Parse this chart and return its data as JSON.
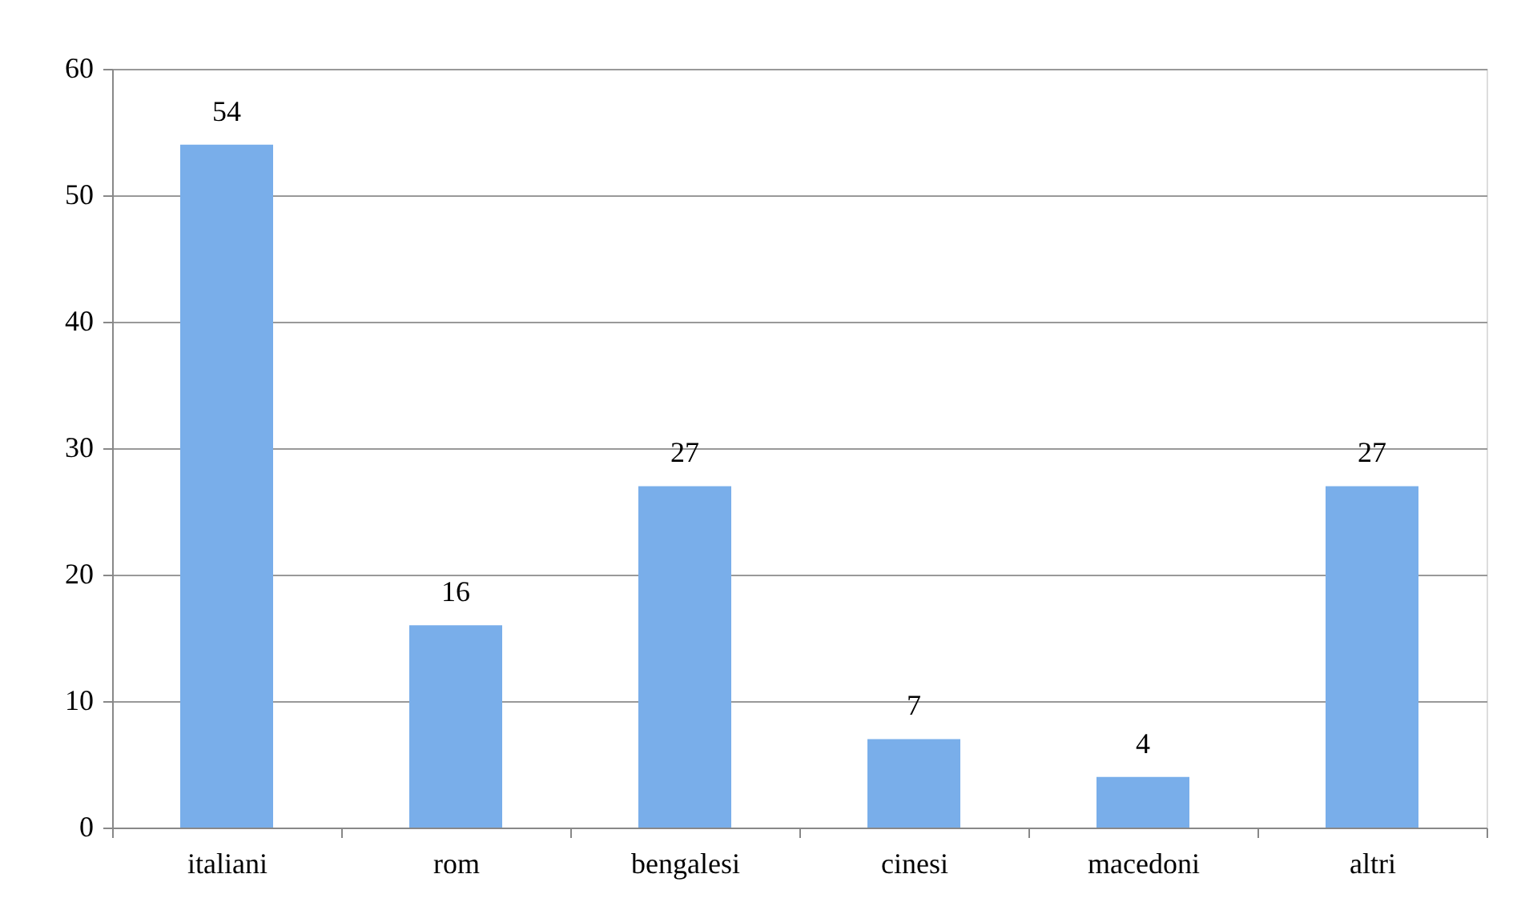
{
  "chart_data": {
    "type": "bar",
    "categories": [
      "italiani",
      "rom",
      "bengalesi",
      "cinesi",
      "macedoni",
      "altri"
    ],
    "values": [
      54,
      16,
      27,
      7,
      4,
      27
    ],
    "color": "#79aeea",
    "ylim": [
      0,
      60
    ],
    "yticks": [
      0,
      10,
      20,
      30,
      40,
      50,
      60
    ],
    "grid": "y",
    "data_labels": true
  }
}
